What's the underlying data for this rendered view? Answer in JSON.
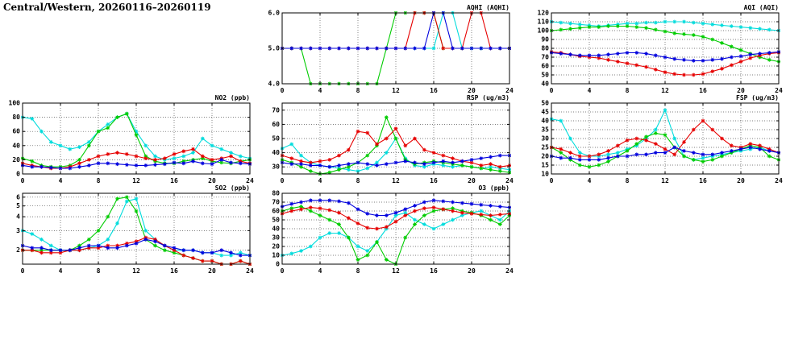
{
  "header": {
    "title": "Central/Western, 20260116–20260119"
  },
  "colors": {
    "red": "#e60000",
    "green": "#00cc00",
    "cyan": "#00dcdc",
    "blue": "#0000dd",
    "grid": "#555555",
    "frame": "#000000",
    "background": "#ffffff"
  },
  "chart_data": [
    {
      "id": "aqhi",
      "type": "line",
      "title": "AQHI (AQHI)",
      "xlim": [
        0,
        24
      ],
      "xticks": [
        0,
        4,
        8,
        12,
        16,
        20,
        24
      ],
      "xtick_labels": [
        "0",
        "4",
        "8",
        "12",
        "16",
        "20",
        "24"
      ],
      "ylim": [
        4,
        6
      ],
      "yticks": [
        4,
        5,
        6
      ],
      "ytick_labels": [
        "4.0",
        "5.0",
        "6.0"
      ],
      "series": [
        {
          "color": "cyan",
          "values": [
            5,
            5,
            5,
            5,
            5,
            5,
            5,
            5,
            5,
            5,
            5,
            5,
            5,
            5,
            5,
            5,
            5,
            6,
            6,
            5,
            5,
            5,
            5,
            5,
            5
          ]
        },
        {
          "color": "green",
          "values": [
            5,
            5,
            5,
            4,
            4,
            4,
            4,
            4,
            4,
            4,
            4,
            5,
            6,
            6,
            6,
            6,
            6,
            5,
            5,
            5,
            5,
            5,
            5,
            5,
            5
          ]
        },
        {
          "color": "red",
          "values": [
            5,
            5,
            5,
            5,
            5,
            5,
            5,
            5,
            5,
            5,
            5,
            5,
            5,
            5,
            6,
            6,
            6,
            5,
            5,
            5,
            6,
            6,
            5,
            5,
            5
          ]
        },
        {
          "color": "blue",
          "values": [
            5,
            5,
            5,
            5,
            5,
            5,
            5,
            5,
            5,
            5,
            5,
            5,
            5,
            5,
            5,
            5,
            6,
            6,
            5,
            5,
            5,
            5,
            5,
            5,
            5
          ]
        }
      ]
    },
    {
      "id": "aqi",
      "type": "line",
      "title": "AQI (AQI)",
      "xlim": [
        0,
        24
      ],
      "xticks": [
        0,
        4,
        8,
        12,
        16,
        20,
        24
      ],
      "xtick_labels": [
        "0",
        "4",
        "8",
        "12",
        "16",
        "20",
        "24"
      ],
      "ylim": [
        40,
        120
      ],
      "yticks": [
        40,
        50,
        60,
        70,
        80,
        90,
        100,
        110,
        120
      ],
      "ytick_labels": [
        "40",
        "50",
        "60",
        "70",
        "80",
        "90",
        "100",
        "110",
        "120"
      ],
      "series": [
        {
          "color": "cyan",
          "values": [
            110,
            109,
            108,
            107,
            106,
            105,
            106,
            107,
            108,
            108,
            109,
            109,
            110,
            110,
            110,
            109,
            108,
            107,
            106,
            105,
            104,
            103,
            102,
            101,
            100
          ]
        },
        {
          "color": "green",
          "values": [
            100,
            101,
            102,
            103,
            104,
            104,
            105,
            105,
            105,
            104,
            103,
            101,
            99,
            97,
            96,
            95,
            93,
            90,
            86,
            82,
            78,
            74,
            70,
            67,
            65
          ]
        },
        {
          "color": "red",
          "values": [
            76,
            75,
            73,
            71,
            70,
            69,
            67,
            65,
            63,
            61,
            59,
            56,
            53,
            51,
            50,
            50,
            51,
            54,
            57,
            61,
            65,
            69,
            72,
            74,
            75
          ]
        },
        {
          "color": "blue",
          "values": [
            75,
            74,
            73,
            72,
            72,
            72,
            73,
            74,
            75,
            75,
            74,
            72,
            70,
            68,
            67,
            66,
            66,
            67,
            68,
            70,
            71,
            73,
            74,
            75,
            76
          ]
        }
      ]
    },
    {
      "id": "no2",
      "type": "line",
      "title": "NO2 (ppb)",
      "xlim": [
        0,
        24
      ],
      "xticks": [
        0,
        4,
        8,
        12,
        16,
        20,
        24
      ],
      "xtick_labels": [
        "0",
        "4",
        "8",
        "12",
        "16",
        "20",
        "24"
      ],
      "ylim": [
        0,
        100
      ],
      "yticks": [
        0,
        20,
        40,
        60,
        80,
        100
      ],
      "ytick_labels": [
        "0",
        "20",
        "40",
        "60",
        "80",
        "100"
      ],
      "series": [
        {
          "color": "cyan",
          "values": [
            80,
            78,
            60,
            45,
            40,
            35,
            38,
            45,
            60,
            70,
            80,
            85,
            60,
            40,
            25,
            20,
            22,
            25,
            30,
            50,
            40,
            35,
            30,
            25,
            22
          ]
        },
        {
          "color": "green",
          "values": [
            22,
            18,
            12,
            10,
            10,
            12,
            20,
            40,
            60,
            65,
            80,
            85,
            55,
            25,
            18,
            15,
            15,
            18,
            20,
            22,
            18,
            16,
            15,
            18,
            20
          ]
        },
        {
          "color": "red",
          "values": [
            15,
            12,
            10,
            8,
            8,
            10,
            15,
            20,
            25,
            28,
            30,
            28,
            25,
            22,
            20,
            22,
            28,
            32,
            35,
            25,
            20,
            22,
            25,
            18,
            15
          ]
        },
        {
          "color": "blue",
          "values": [
            12,
            10,
            10,
            9,
            8,
            8,
            10,
            12,
            15,
            15,
            14,
            13,
            12,
            12,
            13,
            14,
            16,
            15,
            18,
            15,
            14,
            20,
            16,
            15,
            14
          ]
        }
      ]
    },
    {
      "id": "rsp",
      "type": "line",
      "title": "RSP (ug/m3)",
      "xlim": [
        0,
        24
      ],
      "xticks": [
        0,
        4,
        8,
        12,
        16,
        20,
        24
      ],
      "xtick_labels": [
        "0",
        "4",
        "8",
        "12",
        "16",
        "20",
        "24"
      ],
      "ylim": [
        25,
        75
      ],
      "yticks": [
        30,
        40,
        50,
        60,
        70
      ],
      "ytick_labels": [
        "30",
        "40",
        "50",
        "60",
        "70"
      ],
      "series": [
        {
          "color": "cyan",
          "values": [
            43,
            46,
            38,
            33,
            31,
            30,
            29,
            28,
            27,
            29,
            33,
            40,
            50,
            36,
            31,
            30,
            32,
            31,
            30,
            31,
            30,
            29,
            30,
            29,
            28
          ]
        },
        {
          "color": "green",
          "values": [
            35,
            33,
            30,
            27,
            25,
            26,
            28,
            30,
            33,
            38,
            45,
            65,
            50,
            35,
            32,
            33,
            34,
            33,
            32,
            31,
            30,
            29,
            28,
            27,
            26
          ]
        },
        {
          "color": "red",
          "values": [
            38,
            36,
            34,
            33,
            34,
            35,
            38,
            42,
            55,
            54,
            46,
            50,
            57,
            45,
            50,
            42,
            40,
            38,
            36,
            34,
            33,
            31,
            32,
            30,
            31
          ]
        },
        {
          "color": "blue",
          "values": [
            33,
            32,
            32,
            31,
            31,
            30,
            31,
            32,
            33,
            32,
            31,
            32,
            33,
            34,
            33,
            32,
            33,
            34,
            33,
            34,
            35,
            36,
            37,
            38,
            38
          ]
        }
      ]
    },
    {
      "id": "fsp",
      "type": "line",
      "title": "FSP (ug/m3)",
      "xlim": [
        0,
        24
      ],
      "xticks": [
        0,
        4,
        8,
        12,
        16,
        20,
        24
      ],
      "xtick_labels": [
        "0",
        "4",
        "8",
        "12",
        "16",
        "20",
        "24"
      ],
      "ylim": [
        10,
        50
      ],
      "yticks": [
        10,
        15,
        20,
        25,
        30,
        35,
        40,
        45,
        50
      ],
      "ytick_labels": [
        "10",
        "15",
        "20",
        "25",
        "30",
        "35",
        "40",
        "45",
        "50"
      ],
      "series": [
        {
          "color": "cyan",
          "values": [
            41,
            40,
            30,
            22,
            20,
            20,
            21,
            22,
            24,
            26,
            30,
            35,
            46,
            30,
            20,
            18,
            19,
            20,
            21,
            22,
            23,
            24,
            25,
            23,
            22
          ]
        },
        {
          "color": "green",
          "values": [
            25,
            22,
            18,
            15,
            14,
            15,
            17,
            20,
            23,
            27,
            31,
            33,
            32,
            25,
            20,
            18,
            17,
            18,
            20,
            22,
            24,
            26,
            25,
            20,
            18
          ]
        },
        {
          "color": "red",
          "values": [
            25,
            24,
            22,
            20,
            20,
            21,
            23,
            26,
            29,
            30,
            29,
            27,
            24,
            21,
            28,
            35,
            40,
            35,
            30,
            26,
            25,
            27,
            26,
            24,
            22
          ]
        },
        {
          "color": "blue",
          "values": [
            20,
            19,
            19,
            18,
            18,
            18,
            19,
            20,
            20,
            21,
            21,
            22,
            22,
            25,
            23,
            22,
            21,
            21,
            22,
            23,
            24,
            25,
            24,
            23,
            22
          ]
        }
      ]
    },
    {
      "id": "so2",
      "type": "line",
      "title": "SO2 (ppb)",
      "yscale": "log",
      "xlim": [
        0,
        24
      ],
      "xticks": [
        0,
        4,
        8,
        12,
        16,
        20,
        24
      ],
      "xtick_labels": [
        "0",
        "4",
        "8",
        "12",
        "16",
        "20",
        "24"
      ],
      "ylim": [
        1.5,
        6.5
      ],
      "yticks": [
        2,
        3,
        4,
        5,
        6
      ],
      "ytick_labels": [
        "2",
        "3",
        "4",
        "5",
        "6"
      ],
      "series": [
        {
          "color": "cyan",
          "values": [
            3,
            2.8,
            2.5,
            2.2,
            2,
            2,
            2,
            2.1,
            2.2,
            2.5,
            3.5,
            5.5,
            5.8,
            3,
            2.5,
            2.2,
            2,
            2,
            2,
            1.9,
            1.9,
            1.8,
            1.8,
            1.9,
            1.8
          ]
        },
        {
          "color": "green",
          "values": [
            2,
            2,
            2,
            2,
            2,
            2,
            2.2,
            2.5,
            3,
            4,
            5.8,
            6,
            4.5,
            2.5,
            2.2,
            2,
            1.9,
            1.8,
            1.7,
            1.6,
            1.6,
            1.5,
            1.5,
            1.6,
            1.5
          ]
        },
        {
          "color": "red",
          "values": [
            2,
            2,
            1.9,
            1.9,
            1.9,
            2,
            2,
            2.1,
            2.1,
            2.2,
            2.2,
            2.3,
            2.4,
            2.6,
            2.5,
            2.2,
            2,
            1.8,
            1.7,
            1.6,
            1.6,
            1.5,
            1.5,
            1.6,
            1.5
          ]
        },
        {
          "color": "blue",
          "values": [
            2.2,
            2.1,
            2.1,
            2,
            2,
            2,
            2.1,
            2.2,
            2.2,
            2.1,
            2.1,
            2.2,
            2.3,
            2.5,
            2.4,
            2.2,
            2.1,
            2,
            2,
            1.9,
            1.9,
            2,
            1.9,
            1.8,
            1.8
          ]
        }
      ]
    },
    {
      "id": "o3",
      "type": "line",
      "title": "O3 (ppb)",
      "xlim": [
        0,
        24
      ],
      "xticks": [
        0,
        4,
        8,
        12,
        16,
        20,
        24
      ],
      "xtick_labels": [
        "0",
        "4",
        "8",
        "12",
        "16",
        "20",
        "24"
      ],
      "ylim": [
        0,
        80
      ],
      "yticks": [
        0,
        10,
        20,
        30,
        40,
        50,
        60,
        70,
        80
      ],
      "ytick_labels": [
        "0",
        "10",
        "20",
        "30",
        "40",
        "50",
        "60",
        "70",
        "80"
      ],
      "series": [
        {
          "color": "cyan",
          "values": [
            10,
            12,
            15,
            20,
            30,
            35,
            35,
            30,
            20,
            15,
            25,
            40,
            55,
            58,
            50,
            45,
            40,
            45,
            50,
            55,
            58,
            60,
            55,
            50,
            60
          ]
        },
        {
          "color": "green",
          "values": [
            60,
            63,
            65,
            60,
            55,
            50,
            45,
            30,
            5,
            10,
            25,
            5,
            0,
            30,
            45,
            55,
            60,
            62,
            63,
            60,
            58,
            55,
            50,
            45,
            55
          ]
        },
        {
          "color": "red",
          "values": [
            57,
            60,
            62,
            64,
            63,
            61,
            58,
            52,
            46,
            41,
            40,
            42,
            48,
            55,
            60,
            63,
            64,
            62,
            60,
            58,
            57,
            56,
            55,
            56,
            57
          ]
        },
        {
          "color": "blue",
          "values": [
            65,
            68,
            70,
            72,
            72,
            72,
            71,
            69,
            62,
            57,
            55,
            55,
            58,
            62,
            66,
            70,
            72,
            71,
            70,
            69,
            68,
            67,
            66,
            65,
            64
          ]
        }
      ]
    }
  ]
}
